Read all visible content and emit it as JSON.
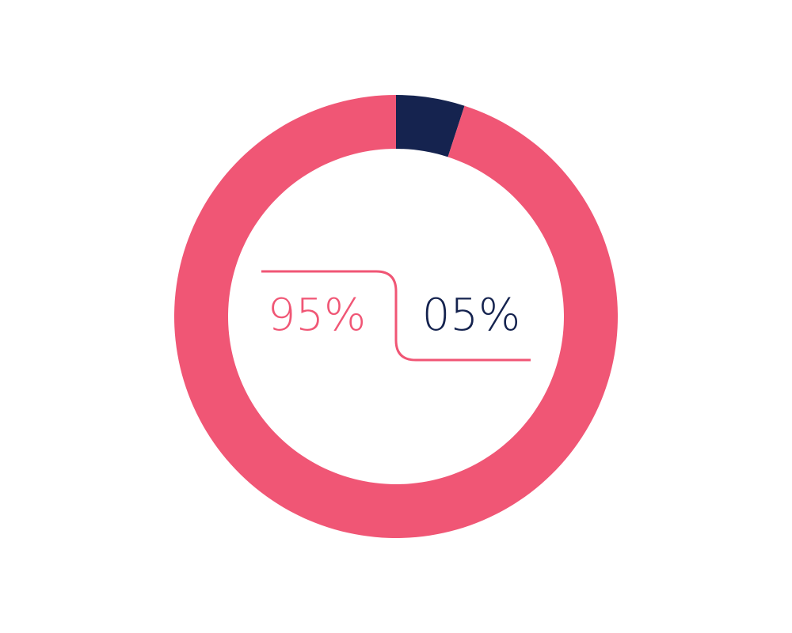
{
  "chart_data": {
    "type": "pie",
    "style": "donut",
    "slices": [
      {
        "label": "05%",
        "value": 5,
        "color": "#15234f"
      },
      {
        "label": "95%",
        "value": 95,
        "color": "#f05675"
      }
    ],
    "connector_color": "#f05675"
  }
}
